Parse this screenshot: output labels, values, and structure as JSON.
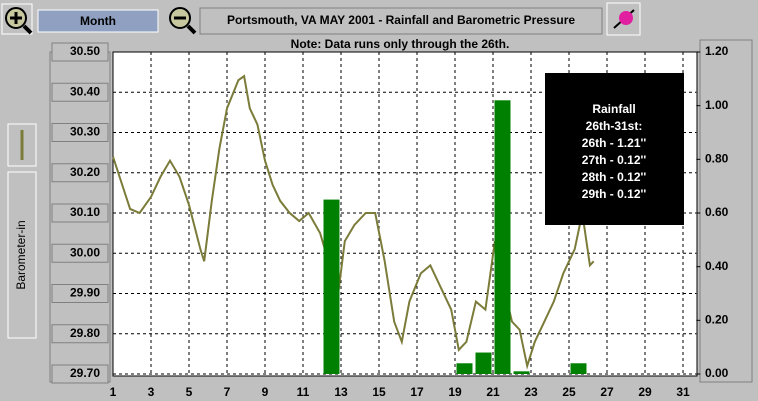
{
  "toolbar": {
    "period_button": "Month",
    "title": "Portsmouth, VA MAY 2001 - Rainfall and Barometric Pressure"
  },
  "chart_data": {
    "type": "combo",
    "subtitle": "Note: Data runs only through the 26th.",
    "annotation": [
      "Rainfall",
      "26th-31st:",
      "26th - 1.21''",
      "27th - 0.12''",
      "28th - 0.12''",
      "29th - 0.12''"
    ],
    "xlim": [
      1,
      31.7
    ],
    "xticks": [
      1,
      3,
      5,
      7,
      9,
      11,
      13,
      15,
      17,
      19,
      21,
      23,
      25,
      27,
      29,
      31
    ],
    "ylim": [
      29.7,
      30.5
    ],
    "yticks": [
      {
        "value": 29.7,
        "label": "29.70"
      },
      {
        "value": 29.8,
        "label": "29.80"
      },
      {
        "value": 29.9,
        "label": "29.90"
      },
      {
        "value": 30.0,
        "label": "30.00"
      },
      {
        "value": 30.1,
        "label": "30.10"
      },
      {
        "value": 30.2,
        "label": "30.20"
      },
      {
        "value": 30.3,
        "label": "30.30"
      },
      {
        "value": 30.4,
        "label": "30.40"
      },
      {
        "value": 30.5,
        "label": "30.50"
      }
    ],
    "y2lim": [
      0,
      1.2
    ],
    "y2ticks": [
      {
        "value": 0,
        "label": "0.00"
      },
      {
        "value": 0.2,
        "label": "0.20"
      },
      {
        "value": 0.4,
        "label": "0.40"
      },
      {
        "value": 0.6,
        "label": "0.60"
      },
      {
        "value": 0.8,
        "label": "0.80"
      },
      {
        "value": 1.0,
        "label": "1.00"
      },
      {
        "value": 1.2,
        "label": "1.20"
      }
    ],
    "grid": true,
    "series": [
      {
        "name": "Barometer-in",
        "color": "#7b7b3a",
        "kind": "line",
        "x": [
          1,
          1.9,
          2.4,
          3,
          3.5,
          4,
          4.5,
          5,
          5.6,
          5.8,
          6.2,
          6.6,
          7,
          7.6,
          7.9,
          8.2,
          8.6,
          9,
          9.4,
          9.8,
          10.3,
          10.8,
          11.3,
          11.9,
          12.4,
          12.8,
          13.2,
          13.7,
          14.3,
          14.8,
          15.3,
          15.8,
          16.2,
          16.6,
          17.2,
          17.7,
          18.3,
          18.8,
          19.2,
          19.6,
          20.1,
          20.6,
          21.1,
          21.6,
          22,
          22.4,
          22.8,
          23.2,
          23.7,
          24.2,
          24.7,
          25.3,
          25.7,
          26.1,
          26.3
        ],
        "values": [
          30.24,
          30.11,
          30.1,
          30.14,
          30.19,
          30.23,
          30.19,
          30.12,
          30.01,
          29.98,
          30.13,
          30.26,
          30.36,
          30.43,
          30.44,
          30.36,
          30.32,
          30.23,
          30.17,
          30.13,
          30.1,
          30.08,
          30.1,
          30.05,
          29.97,
          29.88,
          30.03,
          30.07,
          30.1,
          30.1,
          29.98,
          29.83,
          29.78,
          29.88,
          29.95,
          29.97,
          29.91,
          29.86,
          29.76,
          29.78,
          29.88,
          29.86,
          30.03,
          29.91,
          29.83,
          29.81,
          29.72,
          29.78,
          29.83,
          29.88,
          29.95,
          30.01,
          30.1,
          29.97,
          29.98
        ]
      },
      {
        "color": "#008000",
        "kind": "bar",
        "axis": "y2",
        "x": [
          12,
          19,
          20,
          21,
          22,
          25
        ],
        "values": [
          0.65,
          0.04,
          0.08,
          1.02,
          0.01,
          0.04
        ]
      }
    ]
  }
}
